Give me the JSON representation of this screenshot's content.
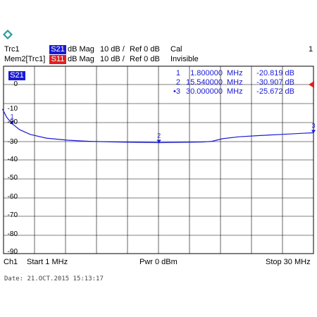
{
  "header": {
    "trace1": {
      "name": "Trc1",
      "badge": "S21",
      "format": "dB Mag",
      "scale": "10 dB /",
      "ref": "Ref 0 dB",
      "status": "Cal",
      "channel_num": "1"
    },
    "trace2": {
      "name": "Mem2[Trc1]",
      "badge": "S11",
      "format": "dB Mag",
      "scale": "10 dB /",
      "ref": "Ref 0 dB",
      "status": "Invisible"
    }
  },
  "plot_badge": "S21",
  "y_axis": {
    "labels": [
      "0",
      "-10",
      "-20",
      "-30",
      "-40",
      "-50",
      "-60",
      "-70",
      "-80",
      "-90"
    ]
  },
  "markers": [
    {
      "index": "1",
      "freq": "1.800000",
      "unit": "MHz",
      "value": "-20.819 dB",
      "active": false
    },
    {
      "index": "2",
      "freq": "15.540000",
      "unit": "MHz",
      "value": "-30.907 dB",
      "active": false
    },
    {
      "index": "•3",
      "freq": "30.000000",
      "unit": "MHz",
      "value": "-25.672 dB",
      "active": true
    }
  ],
  "footer": {
    "channel": "Ch1",
    "start": "Start  1 MHz",
    "power": "Pwr  0 dBm",
    "stop": "Stop  30 MHz"
  },
  "timestamp": "Date: 21.OCT.2015  15:13:17",
  "colors": {
    "trace": "#1a1ad6",
    "grid": "#000000",
    "ref_marker": "#e02020",
    "badge_blue": "#1a1ad6",
    "badge_red": "#e02020"
  },
  "chart_data": {
    "type": "line",
    "x_unit": "MHz",
    "xlim": [
      1,
      30
    ],
    "ylim": [
      -90,
      10
    ],
    "y_divisions": 10,
    "x_divisions": 10,
    "series": [
      {
        "x": [
          0.9,
          1.3,
          1.8,
          2.5,
          3.5,
          5,
          7,
          9,
          11,
          13,
          15.54,
          17.5,
          19.5,
          20.5,
          21.5,
          23,
          25,
          27,
          29,
          30
        ],
        "y": [
          -13,
          -17.5,
          -20.8,
          -24,
          -26.5,
          -28.5,
          -29.6,
          -30.2,
          -30.5,
          -30.7,
          -30.9,
          -30.8,
          -30.6,
          -30.2,
          -28.8,
          -27.8,
          -27.1,
          -26.5,
          -25.9,
          -25.672
        ]
      }
    ],
    "marker_points": [
      {
        "label": "1",
        "x": 1.8,
        "y": -20.819
      },
      {
        "label": "2",
        "x": 15.54,
        "y": -30.907
      },
      {
        "label": "3",
        "x": 30,
        "y": -25.672
      }
    ]
  }
}
